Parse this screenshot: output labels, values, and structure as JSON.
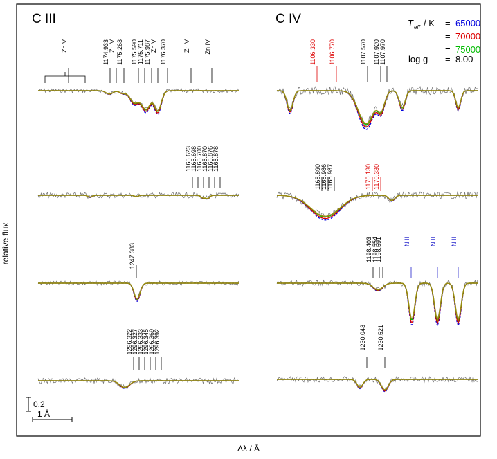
{
  "chart_data": {
    "type": "line",
    "xlabel": "Δλ / Å",
    "ylabel": "relative flux",
    "scale_bars": {
      "flux_label": "0.2",
      "wavelength_label": "1 Å"
    },
    "legend": {
      "teff_label_main": "T",
      "teff_label_sub": "eff",
      "teff_label_rest": " / K",
      "entries": [
        {
          "eq": "=",
          "value": "65000",
          "color": "#0000dd"
        },
        {
          "eq": "=",
          "value": "70000",
          "color": "#dd0000"
        },
        {
          "eq": "=",
          "value": "75000",
          "color": "#00bb00"
        }
      ],
      "logg_label": "log g",
      "logg_eq": "=",
      "logg_value": "8.00"
    },
    "panels": [
      {
        "title": "C III",
        "rows": [
          {
            "lines": [
              "Zn V",
              "1174.933",
              "Zn V",
              "1175.263",
              "1175.590",
              "1175.711",
              "1175.987",
              "Zn V",
              "1176.370",
              "Zn V",
              "Zn IV"
            ],
            "absorption_depths": [
              0.05,
              0.04,
              0.18,
              0.28,
              0.3,
              0.3,
              0.3,
              0.26,
              0.05,
              0.04
            ]
          },
          {
            "lines": [
              "1165.623",
              "1165.698",
              "1165.700",
              "1165.870",
              "1165.876",
              "1165.878"
            ],
            "absorption_depths": [
              0.03,
              0.02,
              0.04,
              0.05
            ]
          },
          {
            "lines": [
              "1247.383"
            ],
            "absorption_depths": [
              0.24
            ]
          },
          {
            "lines": [
              "1296.322",
              "1296.327",
              "1296.333",
              "1296.345",
              "1296.369",
              "1296.392"
            ],
            "absorption_depths": [
              0.1
            ]
          }
        ]
      },
      {
        "title": "C IV",
        "rows": [
          {
            "lines": [
              "1106.330",
              "1106.770",
              "1107.570",
              "1107.920",
              "1107.970"
            ],
            "absorption_depths": [
              0.3,
              0.5,
              0.25,
              0.26
            ]
          },
          {
            "lines": [
              "1168.890",
              "1168.986",
              "1168.987",
              "1170.130",
              "1170.330"
            ],
            "absorption_depths": [
              0.32,
              0.08
            ]
          },
          {
            "lines": [
              "1198.403",
              "1198.554",
              "1198.591",
              "N II",
              "N II",
              "N II"
            ],
            "absorption_depths": [
              0.1,
              0.55,
              0.55,
              0.55
            ]
          },
          {
            "lines": [
              "1230.043",
              "1230.521"
            ],
            "absorption_depths": [
              0.12,
              0.16
            ]
          }
        ]
      }
    ],
    "series": [
      {
        "name": "65000",
        "color": "#0000dd"
      },
      {
        "name": "70000",
        "color": "#dd0000"
      },
      {
        "name": "75000",
        "color": "#00bb00"
      }
    ]
  }
}
